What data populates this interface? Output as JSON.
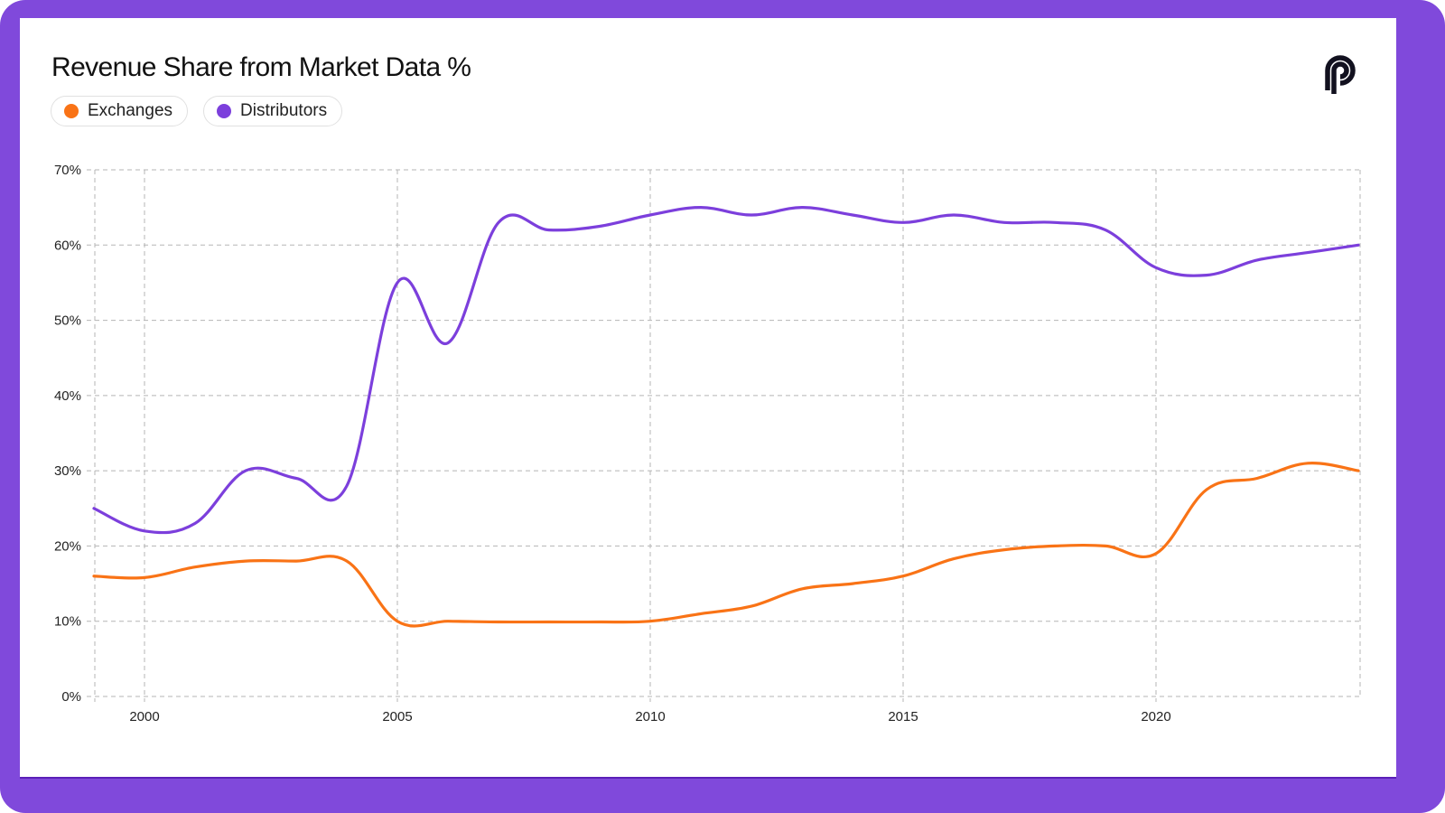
{
  "header": {
    "title": "Revenue Share from Market Data %",
    "logo": "pyth-logo-icon"
  },
  "legend": [
    {
      "label": "Exchanges",
      "color": "#f97316"
    },
    {
      "label": "Distributors",
      "color": "#7c3fdc"
    }
  ],
  "colors": {
    "frame": "#8049db",
    "grid": "#b5b5b5"
  },
  "chart_data": {
    "type": "line",
    "title": "Revenue Share from Market Data %",
    "xlabel": "",
    "ylabel": "",
    "x": [
      1999,
      2000,
      2001,
      2002,
      2003,
      2004,
      2005,
      2006,
      2007,
      2008,
      2009,
      2010,
      2011,
      2012,
      2013,
      2014,
      2015,
      2016,
      2017,
      2018,
      2019,
      2020,
      2021,
      2022,
      2023,
      2024
    ],
    "series": [
      {
        "name": "Exchanges",
        "color": "#f97316",
        "values": [
          16,
          15.8,
          17.2,
          18,
          18,
          18,
          10,
          10,
          9.9,
          9.9,
          9.9,
          10,
          11,
          12,
          14.3,
          15,
          16,
          18.3,
          19.5,
          20,
          20,
          19,
          27.5,
          29,
          31,
          30
        ]
      },
      {
        "name": "Distributors",
        "color": "#7c3fdc",
        "values": [
          25,
          22,
          23,
          30,
          29,
          28,
          55,
          47,
          63,
          62,
          62.5,
          64,
          65,
          64,
          65,
          64,
          63,
          64,
          63,
          63,
          62,
          57,
          56,
          58,
          59,
          60
        ]
      }
    ],
    "xlim": [
      1999,
      2024
    ],
    "ylim": [
      0,
      70
    ],
    "xticks": [
      "2000",
      "2005",
      "2010",
      "2015",
      "2020"
    ],
    "xtick_values": [
      2000,
      2005,
      2010,
      2015,
      2020
    ],
    "yticks": [
      "0%",
      "10%",
      "20%",
      "30%",
      "40%",
      "50%",
      "60%",
      "70%"
    ],
    "ytick_values": [
      0,
      10,
      20,
      30,
      40,
      50,
      60,
      70
    ],
    "grid": true,
    "grid_style": "dashed",
    "legend_position": "top-left"
  }
}
